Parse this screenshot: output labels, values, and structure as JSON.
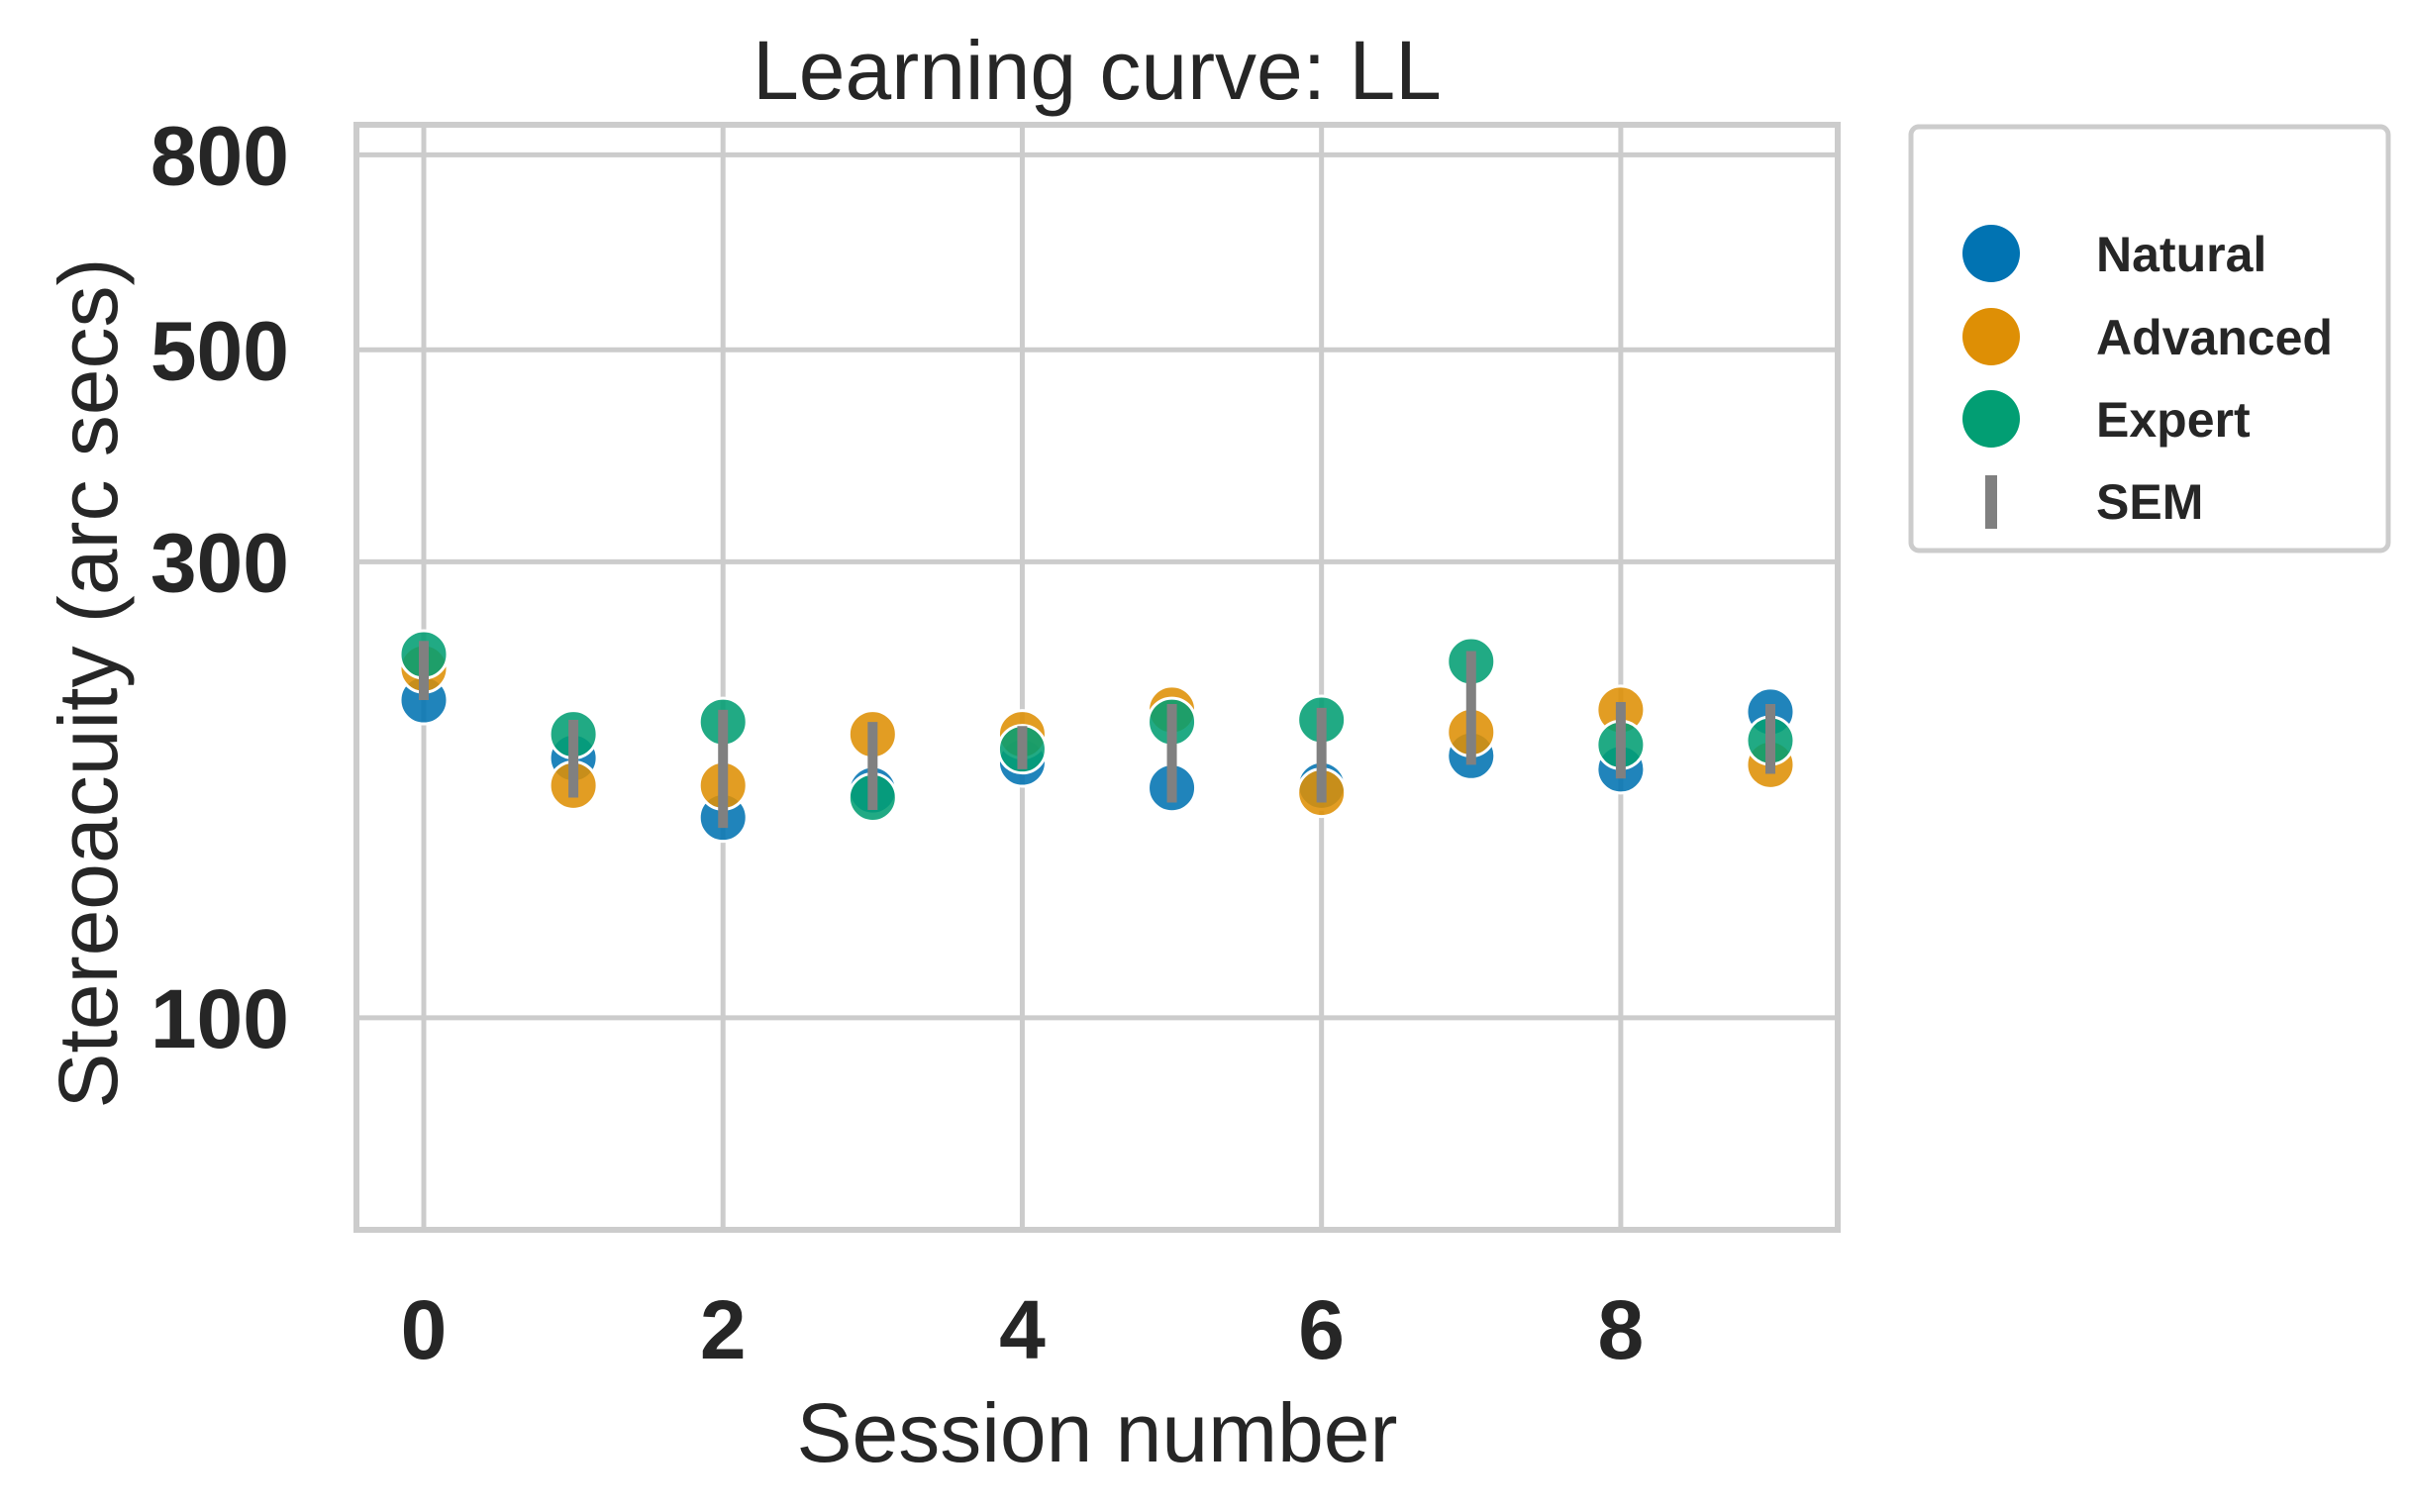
{
  "chart_data": {
    "type": "scatter",
    "title": "Learning curve: LL",
    "xlabel": "Session number",
    "ylabel": "Stereoacuity (arc secs)",
    "yscale": "log",
    "xlim": [
      -0.45,
      9.45
    ],
    "ylim": [
      60,
      860
    ],
    "xticks": [
      0,
      2,
      4,
      6,
      8
    ],
    "yticks": [
      100,
      300,
      500,
      800
    ],
    "ytick_labels": [
      "100",
      "300",
      "500",
      "800"
    ],
    "grid": true,
    "legend_position": "outside-right-top",
    "series": [
      {
        "name": "Natural",
        "color": "#0173b2",
        "x": [
          0,
          1,
          2,
          3,
          4,
          5,
          6,
          7,
          8,
          9
        ],
        "y": [
          215,
          187,
          162,
          173,
          185,
          174,
          175,
          188,
          182,
          209
        ]
      },
      {
        "name": "Advanced",
        "color": "#de8f05",
        "x": [
          0,
          1,
          2,
          3,
          4,
          5,
          6,
          7,
          8,
          9
        ],
        "y": [
          232,
          175,
          175,
          198,
          198,
          210,
          172,
          199,
          210,
          184
        ]
      },
      {
        "name": "Expert",
        "color": "#029e73",
        "x": [
          0,
          1,
          2,
          3,
          4,
          5,
          6,
          7,
          8,
          9
        ],
        "y": [
          240,
          198,
          204,
          170,
          191,
          204,
          205,
          236,
          193,
          195
        ]
      }
    ],
    "error_bars": {
      "name": "SEM",
      "color": "#808080",
      "bars": [
        {
          "x": 0,
          "low": 215,
          "high": 248
        },
        {
          "x": 1,
          "low": 170,
          "high": 205
        },
        {
          "x": 2,
          "low": 158,
          "high": 210
        },
        {
          "x": 3,
          "low": 165,
          "high": 204
        },
        {
          "x": 4,
          "low": 182,
          "high": 202
        },
        {
          "x": 5,
          "low": 168,
          "high": 213
        },
        {
          "x": 6,
          "low": 168,
          "high": 211
        },
        {
          "x": 7,
          "low": 184,
          "high": 242
        },
        {
          "x": 8,
          "low": 178,
          "high": 214
        },
        {
          "x": 9,
          "low": 180,
          "high": 213
        }
      ]
    }
  }
}
